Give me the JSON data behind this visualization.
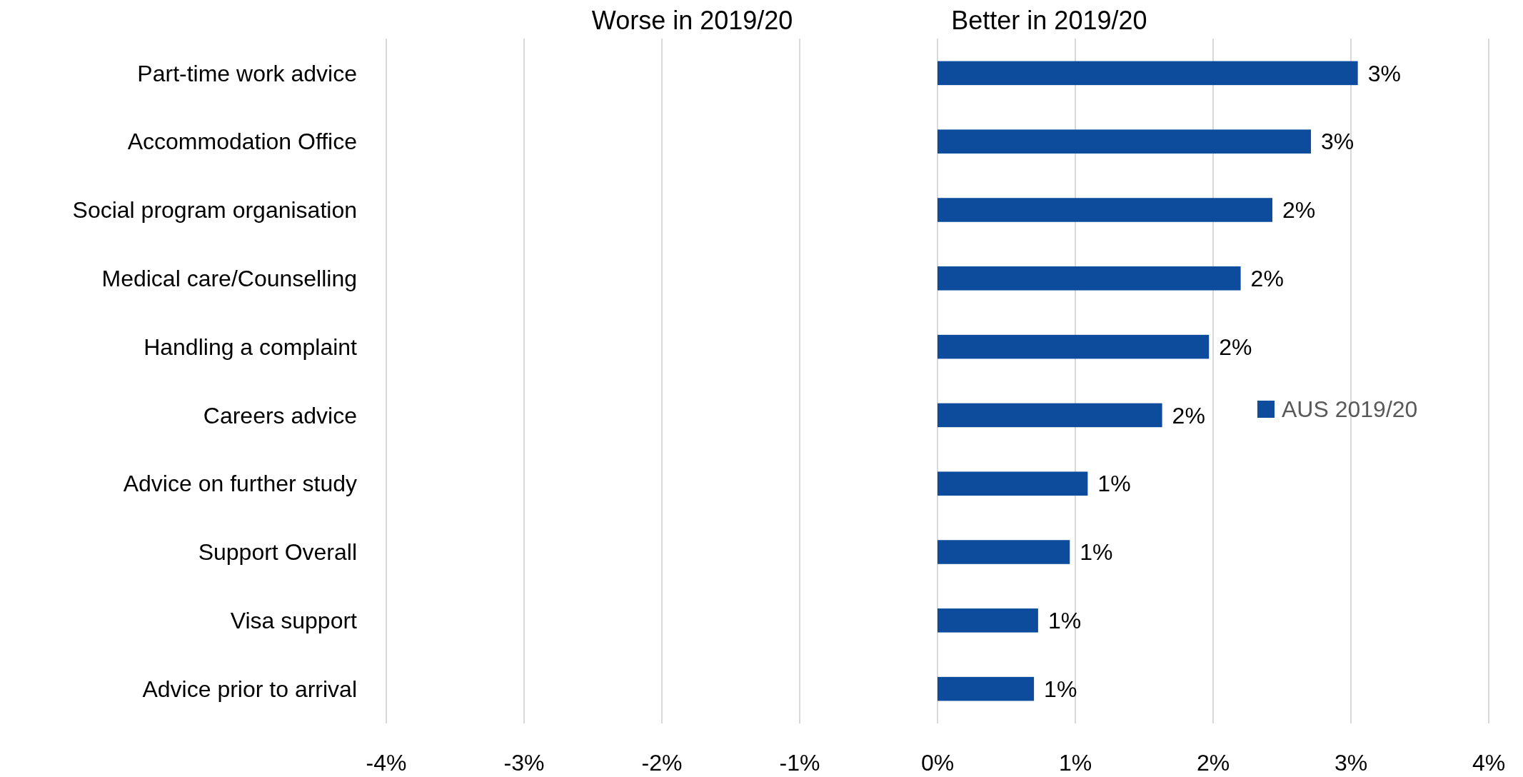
{
  "chart_data": {
    "type": "bar",
    "orientation": "horizontal",
    "categories": [
      "Part-time work advice",
      "Accommodation Office",
      "Social program organisation",
      "Medical care/Counselling",
      "Handling a complaint",
      "Careers advice",
      "Advice on further study",
      "Support Overall",
      "Visa support",
      "Advice prior to arrival"
    ],
    "series": [
      {
        "name": "AUS 2019/20",
        "color": "#0d4c9c",
        "values": [
          3.05,
          2.71,
          2.43,
          2.2,
          1.97,
          1.63,
          1.09,
          0.96,
          0.73,
          0.7
        ],
        "value_labels": [
          "3%",
          "3%",
          "2%",
          "2%",
          "2%",
          "2%",
          "1%",
          "1%",
          "1%",
          "1%"
        ]
      }
    ],
    "xlim": [
      -4,
      4
    ],
    "xticks": [
      {
        "value": -4,
        "label": "-4%"
      },
      {
        "value": -3,
        "label": "-3%"
      },
      {
        "value": -2,
        "label": "-2%"
      },
      {
        "value": -1,
        "label": "-1%"
      },
      {
        "value": 0,
        "label": "0%"
      },
      {
        "value": 1,
        "label": "1%"
      },
      {
        "value": 2,
        "label": "2%"
      },
      {
        "value": 3,
        "label": "3%"
      },
      {
        "value": 4,
        "label": "4%"
      }
    ],
    "grid": "x",
    "legend": "right",
    "annotations": [
      "Worse in 2019/20",
      "Better in 2019/20"
    ]
  }
}
